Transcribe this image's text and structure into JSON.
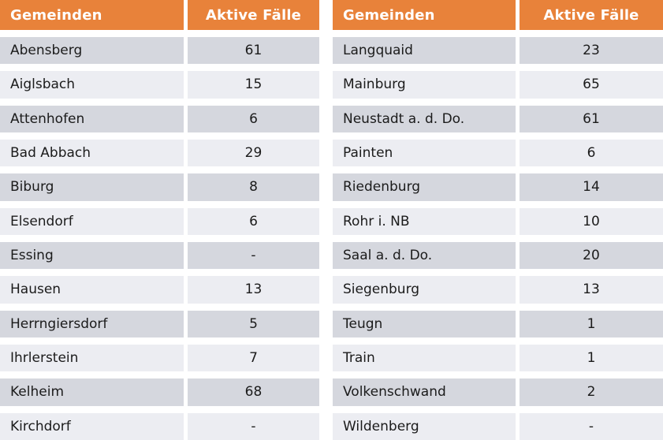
{
  "colors": {
    "page_bg": "#ffffff",
    "header_bg": "#e8823a",
    "header_text": "#ffffff",
    "row_dark": "#d5d7de",
    "row_light": "#ecedf2",
    "body_text": "#1b1b1b"
  },
  "chart_data": {
    "type": "table",
    "column_headers": [
      "Gemeinden",
      "Aktive Fälle"
    ],
    "tables": [
      {
        "rows": [
          {
            "name": "Abensberg",
            "value": "61"
          },
          {
            "name": "Aiglsbach",
            "value": "15"
          },
          {
            "name": "Attenhofen",
            "value": "6"
          },
          {
            "name": "Bad Abbach",
            "value": "29"
          },
          {
            "name": "Biburg",
            "value": "8"
          },
          {
            "name": "Elsendorf",
            "value": "6"
          },
          {
            "name": "Essing",
            "value": "-"
          },
          {
            "name": "Hausen",
            "value": "13"
          },
          {
            "name": "Herrngiersdorf",
            "value": "5"
          },
          {
            "name": "Ihrlerstein",
            "value": "7"
          },
          {
            "name": "Kelheim",
            "value": "68"
          },
          {
            "name": "Kirchdorf",
            "value": "-"
          }
        ]
      },
      {
        "rows": [
          {
            "name": "Langquaid",
            "value": "23"
          },
          {
            "name": "Mainburg",
            "value": "65"
          },
          {
            "name": "Neustadt a. d. Do.",
            "value": "61"
          },
          {
            "name": "Painten",
            "value": "6"
          },
          {
            "name": "Riedenburg",
            "value": "14"
          },
          {
            "name": "Rohr i. NB",
            "value": "10"
          },
          {
            "name": "Saal a. d. Do.",
            "value": "20"
          },
          {
            "name": "Siegenburg",
            "value": "13"
          },
          {
            "name": "Teugn",
            "value": "1"
          },
          {
            "name": "Train",
            "value": "1"
          },
          {
            "name": "Volkenschwand",
            "value": "2"
          },
          {
            "name": "Wildenberg",
            "value": "-"
          }
        ]
      }
    ]
  }
}
